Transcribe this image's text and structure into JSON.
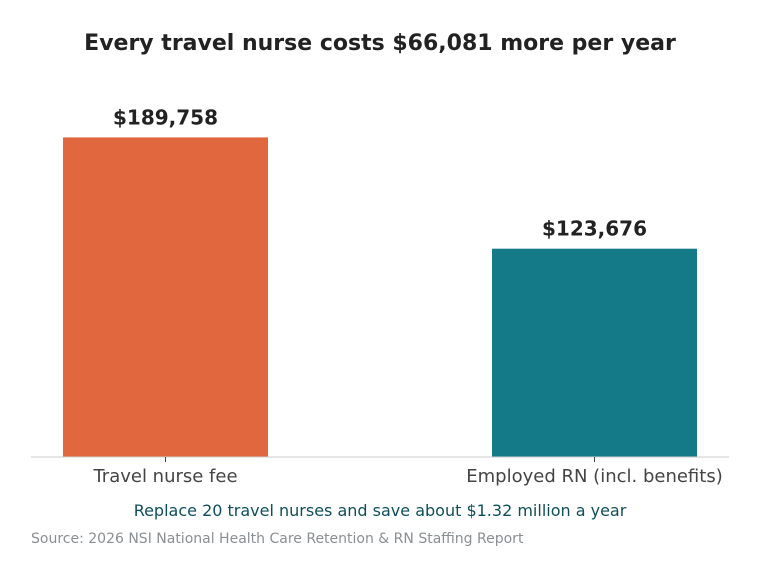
{
  "chart_data": {
    "type": "bar",
    "title": "Every travel nurse costs $66,081 more per year",
    "categories": [
      "Travel nurse fee",
      "Employed RN (incl. benefits)"
    ],
    "values": [
      189758,
      123676
    ],
    "value_labels": [
      "$189,758",
      "$123,676"
    ],
    "colors": [
      "#E0673E",
      "#147A87"
    ],
    "xlabel": "",
    "ylabel": "",
    "ylim": [
      0,
      190000
    ],
    "grid": false,
    "legend": "none",
    "annotation": "Replace 20 travel nurses and save about $1.32 million a year",
    "source": "Source: 2026 NSI National Health Care Retention & RN Staffing Report"
  },
  "colors": {
    "title": "#222222",
    "value_label": "#222222",
    "tick_label": "#444444",
    "annotation": "#0E4F59",
    "source": "#8A8F93",
    "axis": "#CCCCCC"
  }
}
